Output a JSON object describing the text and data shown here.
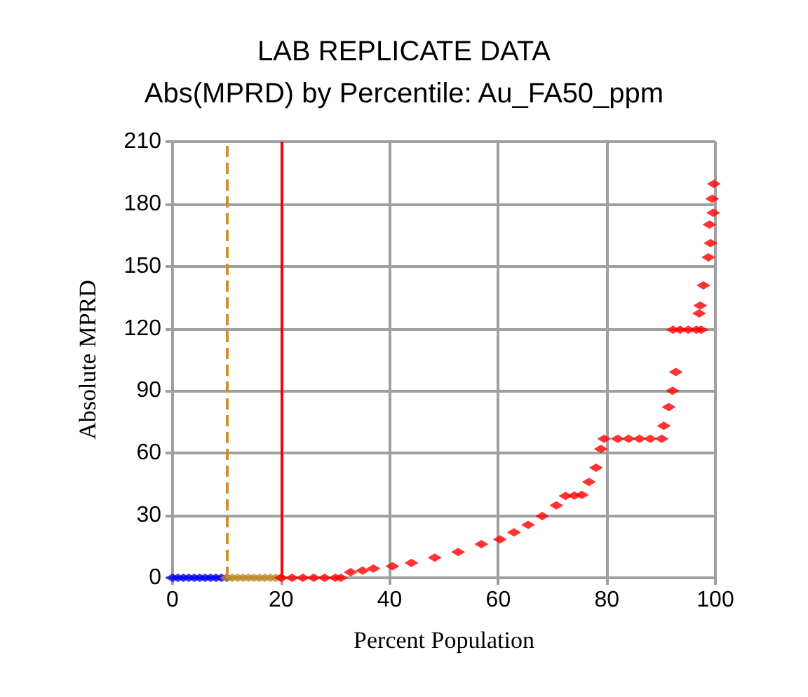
{
  "chart_data": {
    "type": "scatter",
    "title": "LAB REPLICATE DATA",
    "subtitle": "Abs(MPRD) by Percentile: Au_FA50_ppm",
    "xlabel": "Percent Population",
    "ylabel": "Absolute MPRD",
    "xlim": [
      0,
      100
    ],
    "xticks": [
      0,
      20,
      40,
      60,
      80,
      100
    ],
    "ylim": [
      0,
      210
    ],
    "yticks": [
      0,
      30,
      60,
      90,
      120,
      150,
      180,
      210
    ],
    "grid": true,
    "marker": "diamond",
    "series": [
      {
        "color": "#0000ff",
        "x": [
          0,
          1,
          2,
          3,
          4,
          5,
          6,
          7,
          8,
          9,
          10
        ],
        "values": [
          0,
          0,
          0,
          0,
          0,
          0,
          0,
          0,
          0,
          0,
          0
        ]
      },
      {
        "color": "#c08c28",
        "x": [
          10,
          11,
          12,
          13,
          14,
          15,
          16,
          17,
          18,
          19,
          20
        ],
        "values": [
          0,
          0,
          0,
          0,
          0,
          0,
          0,
          0,
          0,
          0,
          0
        ]
      },
      {
        "color": "#ff0000",
        "x": [
          20,
          22,
          24,
          26,
          28,
          30,
          31,
          32.8,
          35,
          37,
          40.5,
          44,
          48.3,
          52.6,
          56.9,
          60.3,
          62.9,
          65.5,
          68.1,
          70.7,
          72.4,
          74,
          75.4,
          76.7,
          78,
          78.9,
          79.5,
          82,
          84,
          86,
          88,
          90.1,
          90.5,
          91.4,
          92.1,
          92.7,
          92.2,
          93.5,
          95,
          96.5,
          97.4,
          97,
          97.2,
          97.8,
          98.7,
          99.1,
          98.9,
          99.6,
          99.4,
          99.7
        ],
        "values": [
          0,
          0,
          0,
          0,
          0,
          0,
          0,
          2.7,
          3.5,
          4.5,
          5.6,
          7.2,
          9.7,
          12.4,
          16.2,
          18.5,
          21.9,
          25.5,
          29.7,
          34.9,
          39.4,
          39.6,
          39.9,
          46.2,
          53,
          62,
          66.9,
          66.9,
          66.9,
          66.9,
          66.9,
          66.9,
          73.2,
          82.2,
          90.1,
          99.1,
          119.4,
          119.4,
          119.4,
          119.4,
          119.4,
          127.3,
          131.1,
          140.8,
          154.3,
          161.1,
          170.1,
          175.7,
          182.5,
          189.7
        ]
      }
    ],
    "ref_lines": [
      {
        "axis": "x",
        "value": 10,
        "color": "#cc8e2e",
        "line_style": "dashed"
      },
      {
        "axis": "x",
        "value": 20,
        "color": "#ff0000",
        "line_style": "solid"
      }
    ]
  }
}
